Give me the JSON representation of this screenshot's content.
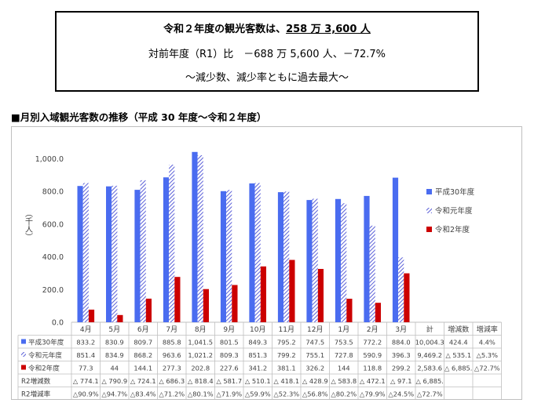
{
  "summary": {
    "line1_prefix": "令和２年度の観光客数は、",
    "line1_highlight": "258 万 3,600 人",
    "line2": "対前年度（R1）比　－688 万 5,600 人、－72.7%",
    "line3": "～減少数、減少率ともに過去最大～"
  },
  "section_title": "■月別入域観光客数の推移（平成 30 年度～令和２年度）",
  "table_extra_headers": [
    "計",
    "増減数",
    "増減率"
  ],
  "table_rows": [
    {
      "label": "平成30年度",
      "values": [
        "833.2",
        "830.9",
        "809.7",
        "885.8",
        "1,041.5",
        "801.5",
        "849.3",
        "795.2",
        "747.5",
        "753.5",
        "772.2",
        "884.0",
        "10,004.3",
        "424.4",
        "4.4%"
      ]
    },
    {
      "label": "令和元年度",
      "values": [
        "851.4",
        "834.9",
        "868.2",
        "963.6",
        "1,021.2",
        "809.3",
        "851.3",
        "799.2",
        "755.1",
        "727.8",
        "590.9",
        "396.3",
        "9,469.2",
        "△ 535.1",
        "△5.3%"
      ]
    },
    {
      "label": "令和2年度",
      "values": [
        "77.3",
        "44",
        "144.1",
        "277.3",
        "202.8",
        "227.6",
        "341.2",
        "381.1",
        "326.2",
        "144",
        "118.8",
        "299.2",
        "2,583.6",
        "△ 6,885.",
        "△72.7%"
      ]
    },
    {
      "label": "R2増減数",
      "values": [
        "△ 774.1",
        "△ 790.9",
        "△ 724.1",
        "△ 686.3",
        "△ 818.4",
        "△ 581.7",
        "△ 510.1",
        "△ 418.1",
        "△ 428.9",
        "△ 583.8",
        "△ 472.1",
        "△ 97.1",
        "△ 6,885.",
        "",
        ""
      ]
    },
    {
      "label": "R2増減率",
      "values": [
        "△90.9%",
        "△94.7%",
        "△83.4%",
        "△71.2%",
        "△80.1%",
        "△71.9%",
        "△59.9%",
        "△52.3%",
        "△56.8%",
        "△80.2%",
        "△79.9%",
        "△24.5%",
        "△72.7%",
        "",
        ""
      ]
    }
  ],
  "chart_data": {
    "type": "bar",
    "ylabel": "（千人）",
    "ylim": [
      0,
      1050
    ],
    "yticks": [
      "0.0",
      "200.0",
      "400.0",
      "600.0",
      "800.0",
      "1,000.0"
    ],
    "ytick_values": [
      0,
      200,
      400,
      600,
      800,
      1000
    ],
    "categories": [
      "4月",
      "5月",
      "6月",
      "7月",
      "8月",
      "9月",
      "10月",
      "11月",
      "12月",
      "1月",
      "2月",
      "3月"
    ],
    "series": [
      {
        "name": "平成30年度",
        "color": "#4a6cf0",
        "pattern": "solid",
        "values": [
          833.2,
          830.9,
          809.7,
          885.8,
          1041.5,
          801.5,
          849.3,
          795.2,
          747.5,
          753.5,
          772.2,
          884.0
        ]
      },
      {
        "name": "令和元年度",
        "color": "#6a6ee0",
        "pattern": "hatched",
        "values": [
          851.4,
          834.9,
          868.2,
          963.6,
          1021.2,
          809.3,
          851.3,
          799.2,
          755.1,
          727.8,
          590.9,
          396.3
        ]
      },
      {
        "name": "令和2年度",
        "color": "#cc0000",
        "pattern": "solid",
        "values": [
          77.3,
          44,
          144.1,
          277.3,
          202.8,
          227.6,
          341.2,
          381.1,
          326.2,
          144,
          118.8,
          299.2
        ]
      }
    ],
    "legend_position": "right",
    "grid": false
  }
}
